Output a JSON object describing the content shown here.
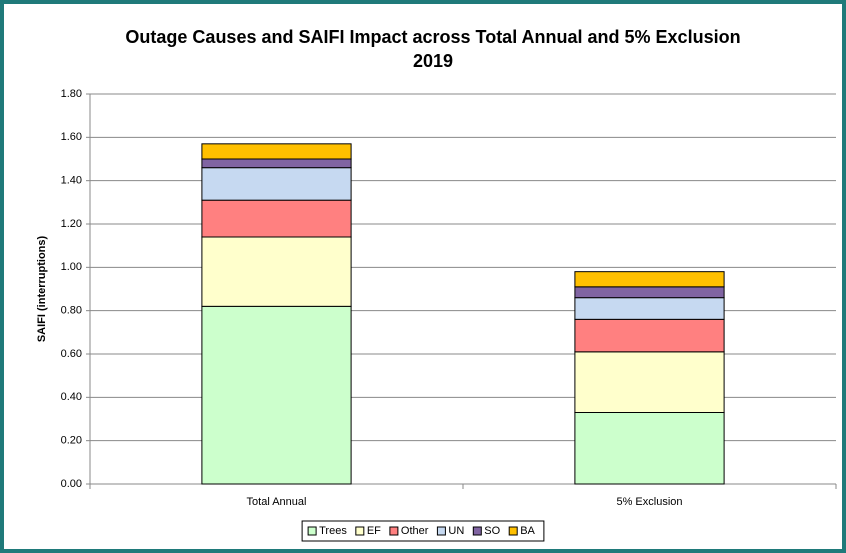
{
  "chart_data": {
    "type": "stacked_bar",
    "title": "Outage Causes and SAIFI Impact across Total Annual and 5% Exclusion",
    "subtitle": "2019",
    "y_label": "SAIFI (interruptions)",
    "categories": [
      "Total Annual",
      "5% Exclusion"
    ],
    "series": [
      {
        "name": "Trees",
        "color": "#ccffcc",
        "values": [
          0.82,
          0.33
        ]
      },
      {
        "name": "EF",
        "color": "#ffffcc",
        "values": [
          0.32,
          0.28
        ]
      },
      {
        "name": "Other",
        "color": "#ff8080",
        "values": [
          0.17,
          0.15
        ]
      },
      {
        "name": "UN",
        "color": "#c6d9f1",
        "values": [
          0.15,
          0.1
        ]
      },
      {
        "name": "SO",
        "color": "#8064a2",
        "values": [
          0.04,
          0.05
        ]
      },
      {
        "name": "BA",
        "color": "#ffc000",
        "values": [
          0.07,
          0.07
        ]
      }
    ],
    "ylim": [
      0,
      1.8
    ],
    "yticks": [
      {
        "value": 0,
        "label": "0.00"
      },
      {
        "value": 0.2,
        "label": "0.20"
      },
      {
        "value": 0.4,
        "label": "0.40"
      },
      {
        "value": 0.6,
        "label": "0.60"
      },
      {
        "value": 0.8,
        "label": "0.80"
      },
      {
        "value": 1.0,
        "label": "1.00"
      },
      {
        "value": 1.2,
        "label": "1.20"
      },
      {
        "value": 1.4,
        "label": "1.40"
      },
      {
        "value": 1.6,
        "label": "1.60"
      },
      {
        "value": 1.8,
        "label": "1.80"
      }
    ],
    "grid": true,
    "legend": "bottom"
  }
}
